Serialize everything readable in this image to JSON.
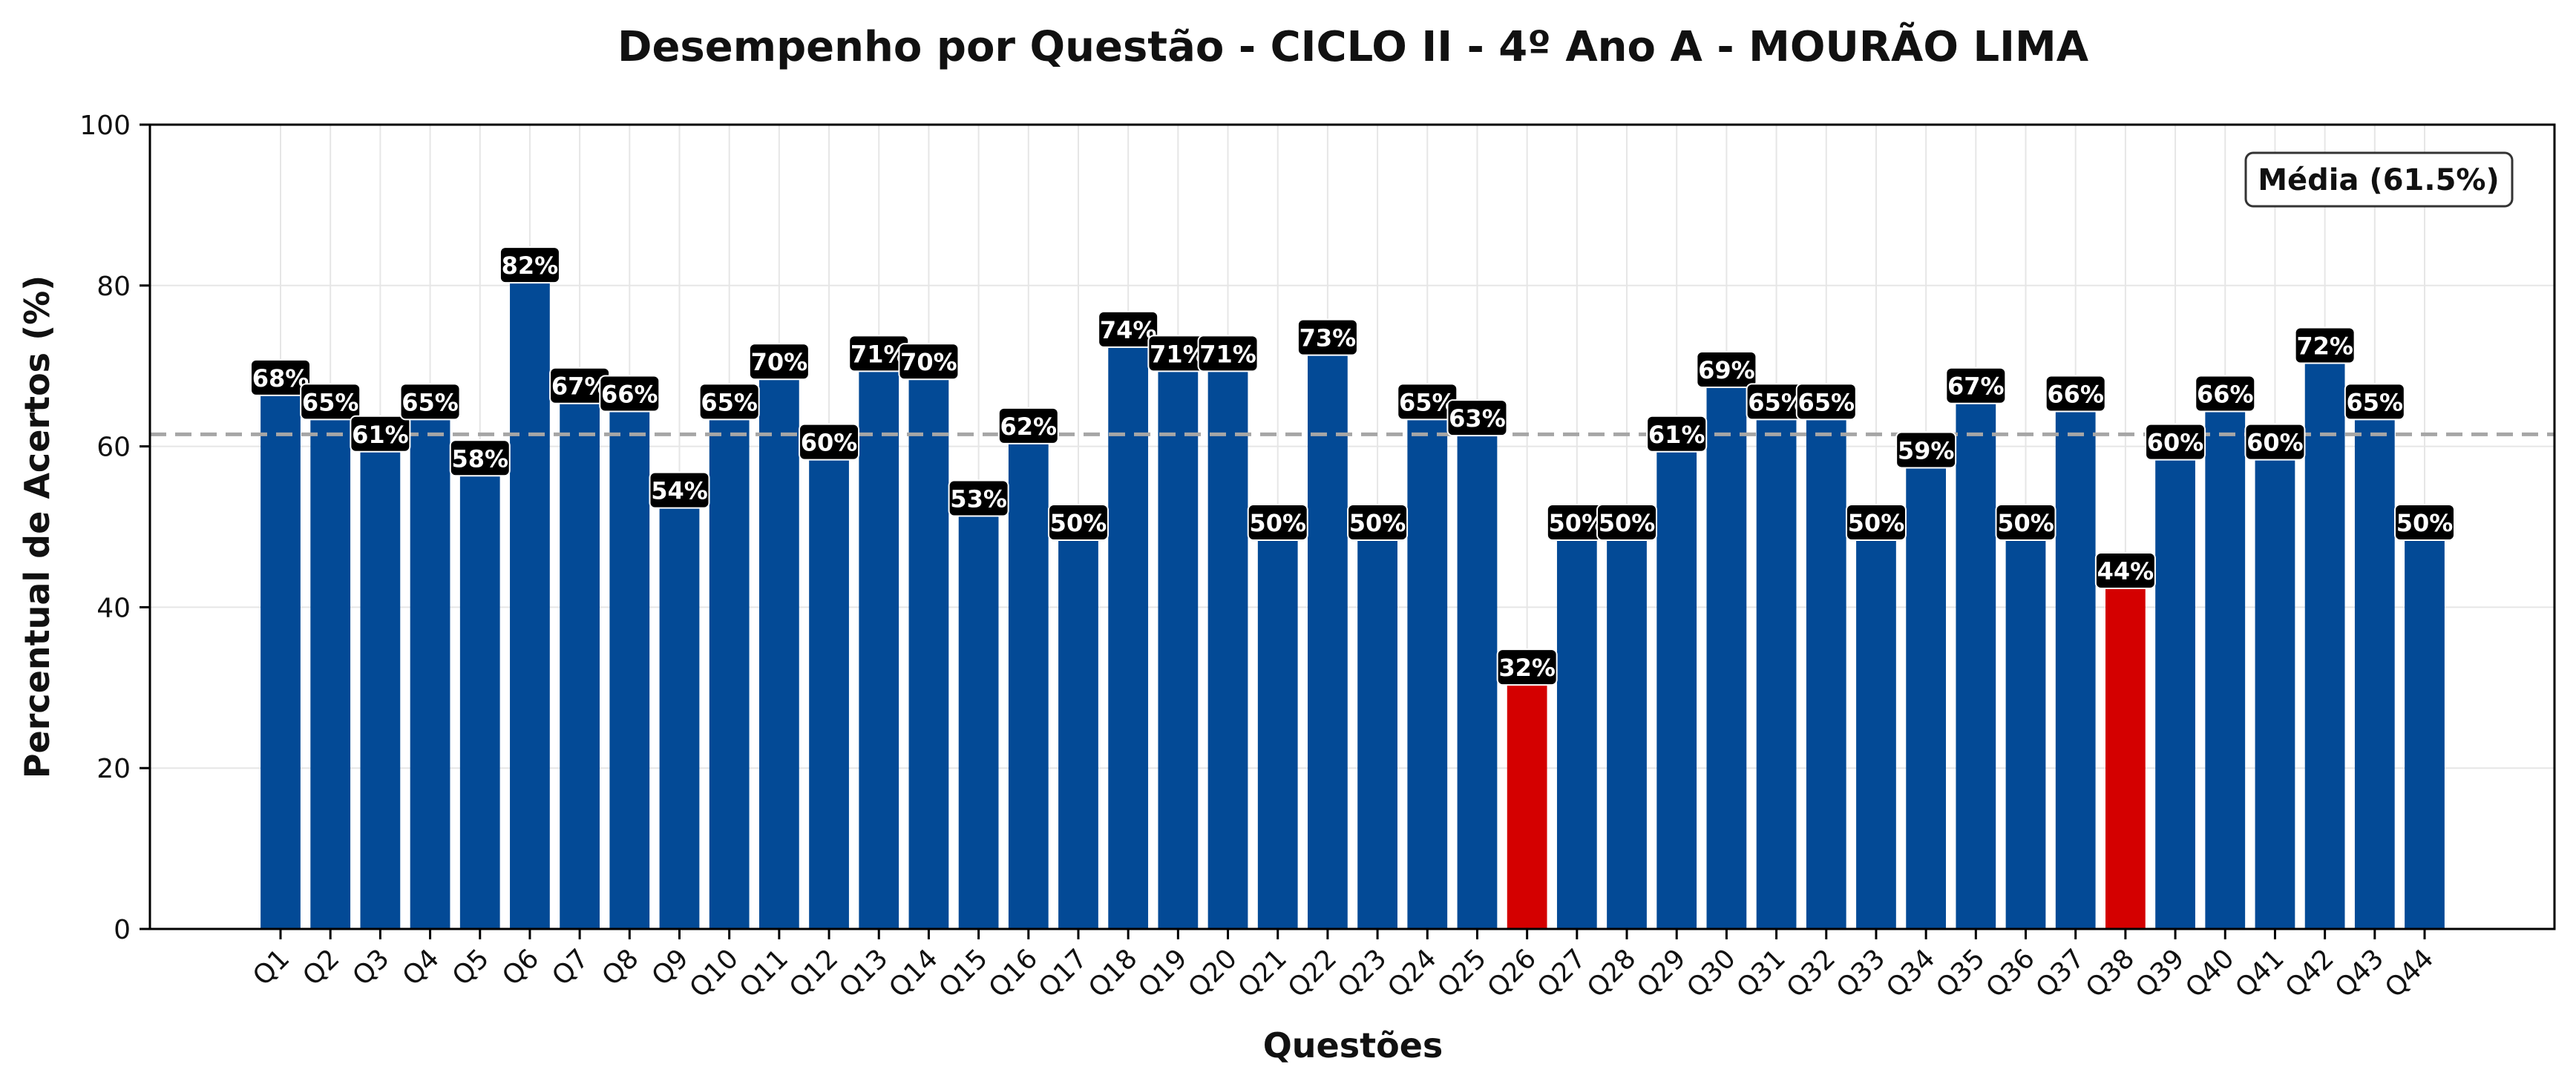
{
  "colors": {
    "bar": "#034a96",
    "bar_low": "#d40000",
    "mean_line": "#a6a6a6",
    "grid": "#e6e6e6",
    "label_bg": "#000000",
    "label_text": "#ffffff"
  },
  "chart_data": {
    "type": "bar",
    "title": "Desempenho por Questão - CICLO II - 4º Ano A - MOURÃO LIMA",
    "xlabel": "Questões",
    "ylabel": "Percentual de Acertos (%)",
    "ylim": [
      0,
      100
    ],
    "yticks": [
      0,
      20,
      40,
      60,
      80,
      100
    ],
    "grid": true,
    "legend_position": "top-right",
    "mean": 61.5,
    "mean_label": "Média (61.5%)",
    "categories": [
      "Q1",
      "Q2",
      "Q3",
      "Q4",
      "Q5",
      "Q6",
      "Q7",
      "Q8",
      "Q9",
      "Q10",
      "Q11",
      "Q12",
      "Q13",
      "Q14",
      "Q15",
      "Q16",
      "Q17",
      "Q18",
      "Q19",
      "Q20",
      "Q21",
      "Q22",
      "Q23",
      "Q24",
      "Q25",
      "Q26",
      "Q27",
      "Q28",
      "Q29",
      "Q30",
      "Q31",
      "Q32",
      "Q33",
      "Q34",
      "Q35",
      "Q36",
      "Q37",
      "Q38",
      "Q39",
      "Q40",
      "Q41",
      "Q42",
      "Q43",
      "Q44"
    ],
    "values": [
      68,
      65,
      61,
      65,
      58,
      82,
      67,
      66,
      54,
      65,
      70,
      60,
      71,
      70,
      53,
      62,
      50,
      74,
      71,
      71,
      50,
      73,
      50,
      65,
      63,
      32,
      50,
      50,
      61,
      69,
      65,
      65,
      50,
      59,
      67,
      50,
      66,
      44,
      60,
      66,
      60,
      72,
      65,
      50
    ],
    "value_labels": [
      "68%",
      "65%",
      "61%",
      "65%",
      "58%",
      "82%",
      "67%",
      "66%",
      "54%",
      "65%",
      "70%",
      "60%",
      "71%",
      "70%",
      "53%",
      "62%",
      "50%",
      "74%",
      "71%",
      "71%",
      "50%",
      "73%",
      "50%",
      "65%",
      "63%",
      "32%",
      "50%",
      "50%",
      "61%",
      "69%",
      "65%",
      "65%",
      "50%",
      "59%",
      "67%",
      "50%",
      "66%",
      "44%",
      "60%",
      "66%",
      "60%",
      "72%",
      "65%",
      "50%"
    ],
    "highlighted": [
      "Q26",
      "Q38"
    ]
  }
}
